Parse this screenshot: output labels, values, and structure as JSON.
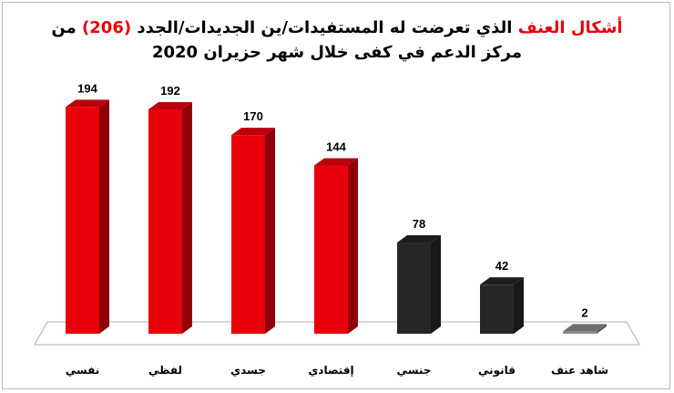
{
  "chart_data": {
    "type": "bar",
    "title_parts": [
      {
        "text": "أشكال العنف",
        "color": "#e8000b"
      },
      {
        "text": " الذي تعرضت له المستفيدات/ين الجديدات/الجدد ",
        "color": "#000000"
      },
      {
        "text": "(206)",
        "color": "#e8000b"
      },
      {
        "text": " من",
        "color": "#000000"
      }
    ],
    "title_line2": "مركز الدعم في كفى خلال شهر حزيران 2020",
    "categories": [
      "نفسي",
      "لفظي",
      "جسدي",
      "إقتصادي",
      "جنسي",
      "قانوني",
      "شاهد عنف"
    ],
    "values": [
      194,
      192,
      170,
      144,
      78,
      42,
      2
    ],
    "colors": [
      "#e8000b",
      "#e8000b",
      "#e8000b",
      "#e8000b",
      "#262626",
      "#262626",
      "#8a8a8a"
    ],
    "ylim": [
      0,
      206
    ],
    "grid": false,
    "legend": "none"
  }
}
